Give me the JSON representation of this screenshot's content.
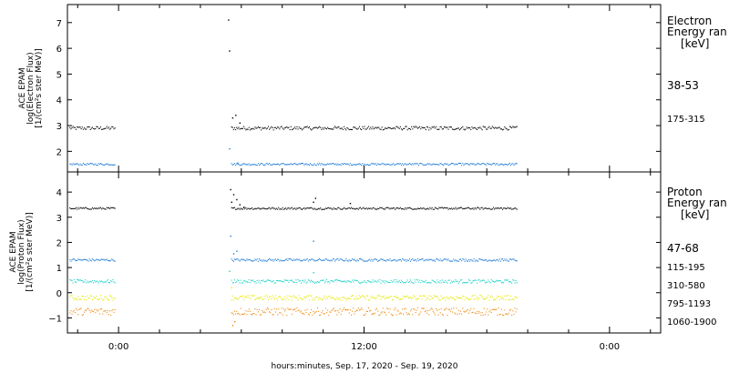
{
  "xaxis": {
    "label": "hours:minutes, Sep. 17, 2020 - Sep. 19, 2020",
    "range_hours": [
      -2.5,
      26.5
    ],
    "ticks": [
      {
        "hours": 0,
        "label": "0:00"
      },
      {
        "hours": 12,
        "label": "12:00"
      },
      {
        "hours": 24,
        "label": "0:00"
      }
    ]
  },
  "chart_data": [
    {
      "type": "scatter",
      "ylabel": [
        "ACE EPAM",
        "log(Electron Flux)",
        "[1/(cm²s ster MeV)]"
      ],
      "ylim": [
        1.2,
        7.7
      ],
      "yticks": [
        2,
        3,
        4,
        5,
        6,
        7
      ],
      "legend_title": [
        "Electron",
        "Energy ran",
        "[keV]"
      ],
      "legend_placement": "right",
      "series": [
        {
          "name": "38-53",
          "color": "#000000",
          "base": 2.9,
          "jitter": 0.07,
          "segments": [
            [
              -2.4,
              -0.2
            ],
            [
              5.5,
              19.5
            ]
          ],
          "spikes": [
            [
              5.35,
              7.1
            ],
            [
              5.4,
              5.9
            ],
            [
              5.55,
              3.3
            ],
            [
              5.7,
              3.4
            ],
            [
              5.9,
              3.1
            ]
          ]
        },
        {
          "name": "175-315",
          "color": "#1e7ad6",
          "base": 1.5,
          "jitter": 0.04,
          "segments": [
            [
              -2.4,
              -0.2
            ],
            [
              5.5,
              19.5
            ]
          ],
          "spikes": [
            [
              5.4,
              2.1
            ],
            [
              5.8,
              1.55
            ]
          ]
        }
      ]
    },
    {
      "type": "scatter",
      "ylabel": [
        "ACE EPAM",
        "log(Proton Flux)",
        "[1/(cm²s ster MeV)]"
      ],
      "ylim": [
        -1.6,
        4.8
      ],
      "yticks": [
        -1,
        0,
        1,
        2,
        3,
        4
      ],
      "legend_title": [
        "Proton",
        "Energy ran",
        "[keV]"
      ],
      "legend_placement": "right",
      "series": [
        {
          "name": "47-68",
          "color": "#000000",
          "base": 3.35,
          "jitter": 0.04,
          "segments": [
            [
              -2.4,
              -0.2
            ],
            [
              5.5,
              19.5
            ]
          ],
          "spikes": [
            [
              5.45,
              4.1
            ],
            [
              5.5,
              3.6
            ],
            [
              5.6,
              3.9
            ],
            [
              5.75,
              3.7
            ],
            [
              5.9,
              3.5
            ],
            [
              6.1,
              3.4
            ],
            [
              9.5,
              3.6
            ],
            [
              9.6,
              3.75
            ],
            [
              11.3,
              3.55
            ]
          ]
        },
        {
          "name": "115-195",
          "color": "#1e7ad6",
          "base": 1.3,
          "jitter": 0.05,
          "segments": [
            [
              -2.4,
              -0.2
            ],
            [
              5.5,
              19.5
            ]
          ],
          "spikes": [
            [
              5.45,
              2.25
            ],
            [
              5.6,
              1.55
            ],
            [
              5.75,
              1.65
            ],
            [
              9.5,
              2.05
            ]
          ]
        },
        {
          "name": "310-580",
          "color": "#19d1c8",
          "base": 0.45,
          "jitter": 0.07,
          "segments": [
            [
              -2.4,
              -0.2
            ],
            [
              5.5,
              19.5
            ]
          ],
          "spikes": [
            [
              5.4,
              0.85
            ],
            [
              9.5,
              0.8
            ]
          ]
        },
        {
          "name": "795-1193",
          "color": "#e6e600",
          "base": -0.2,
          "jitter": 0.1,
          "segments": [
            [
              -2.4,
              -0.2
            ],
            [
              5.5,
              19.5
            ]
          ],
          "spikes": [
            [
              5.5,
              0.2
            ]
          ]
        },
        {
          "name": "1060-1900",
          "color": "#f08a10",
          "base": -0.75,
          "jitter": 0.15,
          "segments": [
            [
              -2.4,
              -0.2
            ],
            [
              5.5,
              19.5
            ]
          ],
          "spikes": [
            [
              5.55,
              -1.3
            ],
            [
              5.65,
              -1.15
            ]
          ]
        }
      ]
    }
  ]
}
